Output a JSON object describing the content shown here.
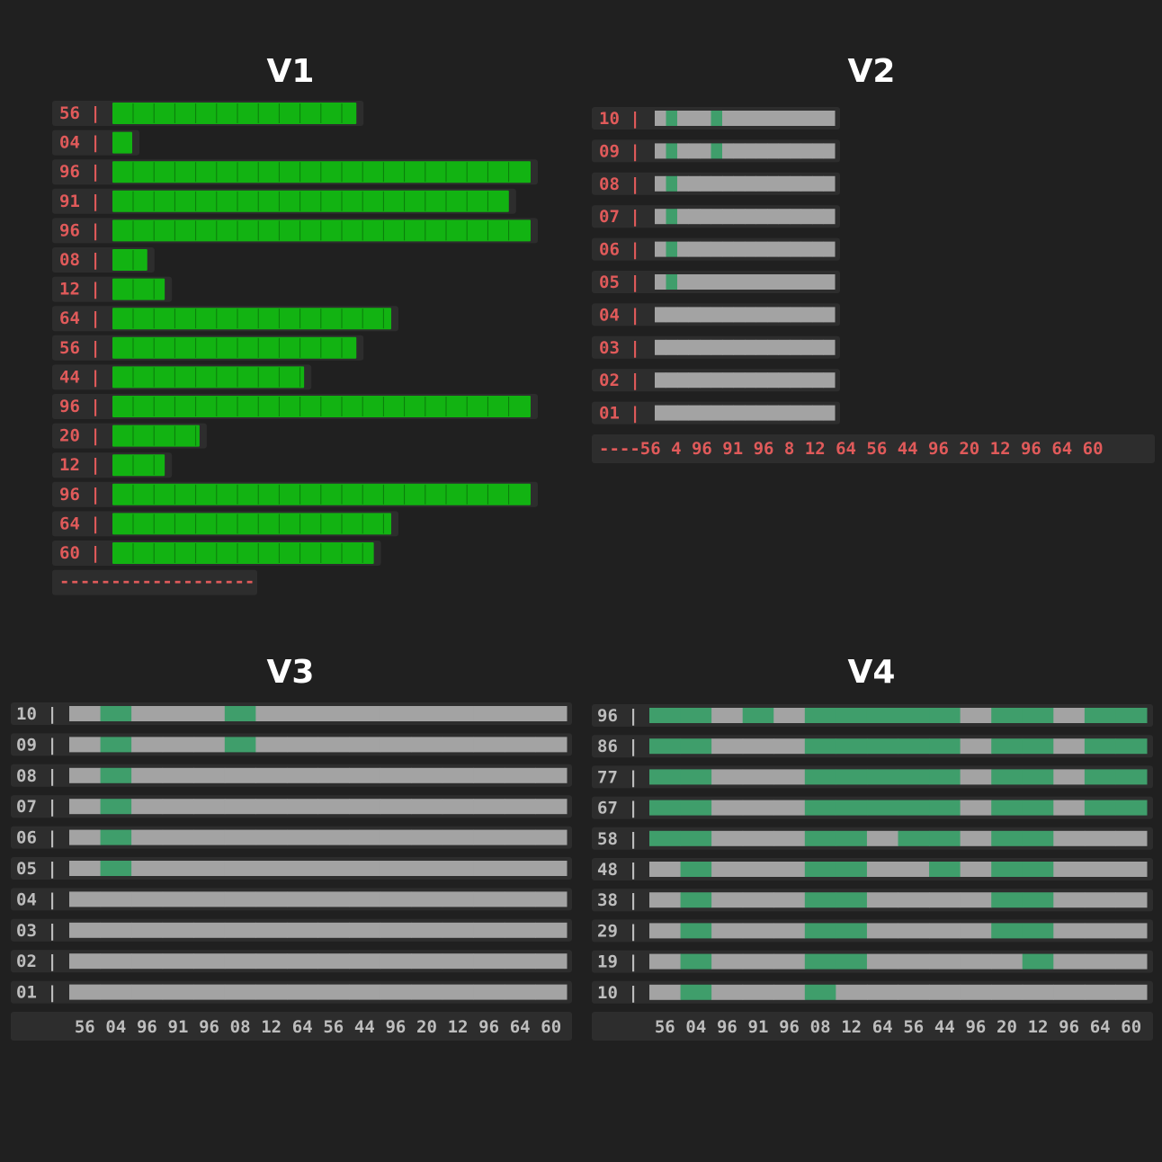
{
  "titles": {
    "v1": "V1",
    "v2": "V2",
    "v3": "V3",
    "v4": "V4"
  },
  "colors": {
    "bright_green": "#12b312",
    "muted_green": "#3f9e6b",
    "gray": "#a3a3a3",
    "red_text": "#e05a5a",
    "gray_text": "#bdbdbd"
  },
  "chart_data": [
    {
      "type": "bar",
      "name_ref": "V1",
      "orientation": "horizontal",
      "categories": [
        "56",
        "04",
        "96",
        "91",
        "96",
        "08",
        "12",
        "64",
        "56",
        "44",
        "96",
        "20",
        "12",
        "96",
        "64",
        "60"
      ],
      "values": [
        56,
        4,
        96,
        91,
        96,
        8,
        12,
        64,
        56,
        44,
        96,
        20,
        12,
        96,
        64,
        60
      ],
      "baseline_text": "-------------------"
    },
    {
      "type": "heatmap",
      "name_ref": "V2",
      "row_labels": [
        "10",
        "09",
        "08",
        "07",
        "06",
        "05",
        "04",
        "03",
        "02",
        "01"
      ],
      "x_axis_text": "----56 4 96 91 96 8 12 64 56 44 96 20 12 96 64 60",
      "thresholds": [
        10,
        9,
        8,
        7,
        6,
        5,
        4,
        3,
        2,
        1
      ],
      "values": [
        56,
        4,
        96,
        91,
        96,
        8,
        12,
        64,
        56,
        44,
        96,
        20,
        12,
        96,
        64,
        60
      ]
    },
    {
      "type": "heatmap",
      "name_ref": "V3",
      "row_labels": [
        "10",
        "09",
        "08",
        "07",
        "06",
        "05",
        "04",
        "03",
        "02",
        "01"
      ],
      "x_tick_labels": [
        "56",
        "04",
        "96",
        "91",
        "96",
        "08",
        "12",
        "64",
        "56",
        "44",
        "96",
        "20",
        "12",
        "96",
        "64",
        "60"
      ],
      "thresholds": [
        10,
        9,
        8,
        7,
        6,
        5,
        4,
        3,
        2,
        1
      ],
      "values": [
        56,
        4,
        96,
        91,
        96,
        8,
        12,
        64,
        56,
        44,
        96,
        20,
        12,
        96,
        64,
        60
      ]
    },
    {
      "type": "heatmap",
      "name_ref": "V4",
      "row_labels": [
        "96",
        "86",
        "77",
        "67",
        "58",
        "48",
        "38",
        "29",
        "19",
        "10"
      ],
      "x_tick_labels": [
        "56",
        "04",
        "96",
        "91",
        "96",
        "08",
        "12",
        "64",
        "56",
        "44",
        "96",
        "20",
        "12",
        "96",
        "64",
        "60"
      ],
      "thresholds": [
        96,
        86,
        77,
        67,
        58,
        48,
        38,
        29,
        19,
        10
      ],
      "values": [
        56,
        4,
        96,
        91,
        96,
        8,
        12,
        64,
        56,
        44,
        96,
        20,
        12,
        96,
        64,
        60
      ]
    }
  ]
}
